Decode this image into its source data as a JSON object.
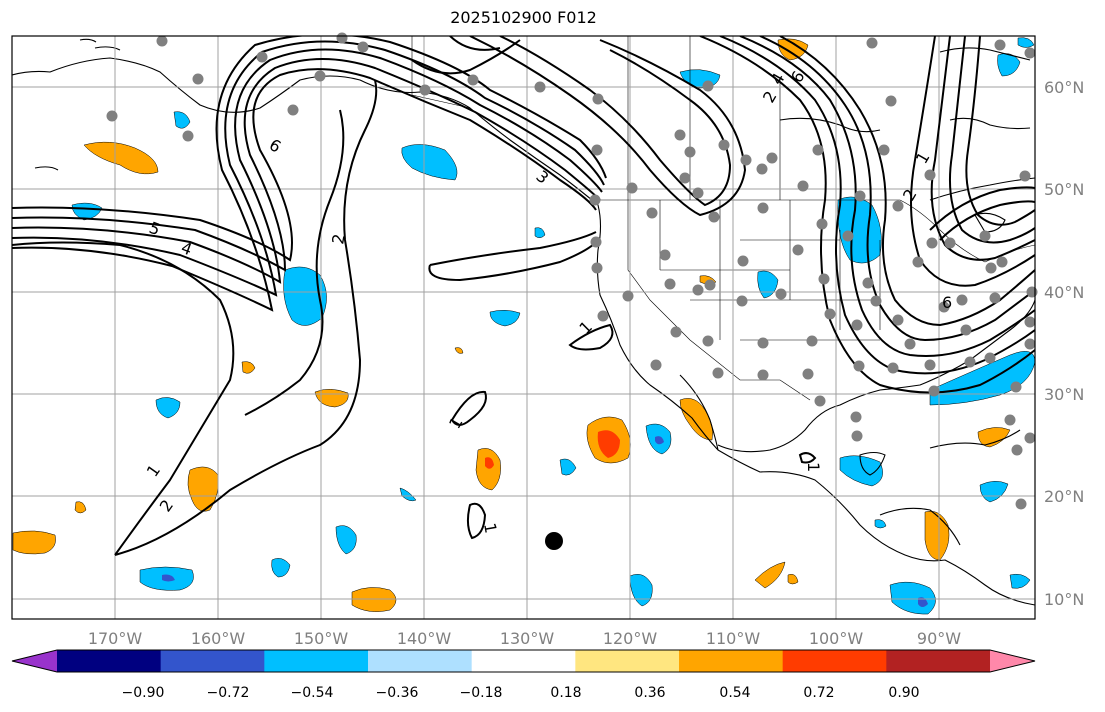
{
  "title": "2025102900 F012",
  "map": {
    "lon_ticks": [
      "170°W",
      "160°W",
      "150°W",
      "140°W",
      "130°W",
      "120°W",
      "110°W",
      "100°W",
      "90°W"
    ],
    "lat_ticks": [
      "60°N",
      "50°N",
      "40°N",
      "30°N",
      "20°N",
      "10°N"
    ],
    "contour_labels": [
      "6",
      "5",
      "4",
      "2",
      "1",
      "2",
      "1",
      "1",
      "1",
      "1",
      "4",
      "6",
      "2",
      "1",
      "2",
      "6",
      "3"
    ],
    "colors": {
      "contour": "#000000",
      "grid": "#a0a0a0",
      "tick_label": "#808080",
      "station_dot": "#808080",
      "marker": "#000000"
    }
  },
  "colorbar": {
    "tick_labels": [
      "−0.90",
      "−0.72",
      "−0.54",
      "−0.36",
      "−0.18",
      "0.18",
      "0.36",
      "0.54",
      "0.72",
      "0.90"
    ],
    "colors": [
      "#9933cc",
      "#000080",
      "#3355cc",
      "#00bfff",
      "#aee0ff",
      "#ffffff",
      "#ffe680",
      "#ffa500",
      "#ff3c00",
      "#b22222",
      "#ff88aa"
    ]
  }
}
